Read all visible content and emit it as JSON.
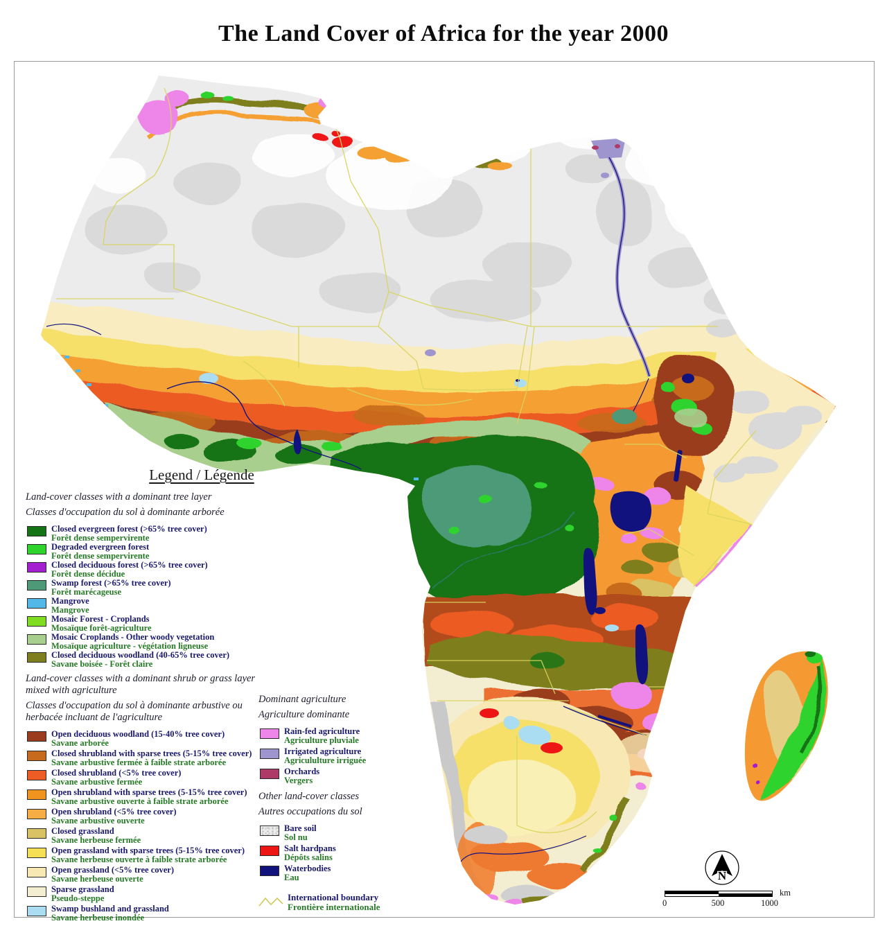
{
  "title": "The Land Cover of Africa for the year 2000",
  "legend": {
    "title": "Legend / Légende",
    "label_color_en": "#18186e",
    "label_color_fr": "#267a26",
    "sections": [
      {
        "id": "tree",
        "header_en": "Land-cover classes with a dominant tree layer",
        "header_fr": "Classes d'occupation du sol à dominante arborée",
        "items": [
          {
            "en": "Closed evergreen forest (>65% tree cover)",
            "fr": "Forêt dense sempervirente",
            "color": "#147314"
          },
          {
            "en": "Degraded evergreen forest",
            "fr": "Forêt dense sempervirente",
            "color": "#2ed32e"
          },
          {
            "en": "Closed deciduous forest (>65% tree cover)",
            "fr": "Forêt dense décidue",
            "color": "#a31fd0"
          },
          {
            "en": "Swamp forest (>65% tree cover)",
            "fr": "Forêt marécageuse",
            "color": "#4e9a78"
          },
          {
            "en": "Mangrove",
            "fr": "Mangrove",
            "color": "#52b8e8"
          },
          {
            "en": "Mosaic Forest - Croplands",
            "fr": "Mosaïque forêt-agriculture",
            "color": "#7fdc20"
          },
          {
            "en": "Mosaic Croplands - Other woody vegetation",
            "fr": "Mosaïque agriculture - végétation ligneuse",
            "color": "#a8cf8e"
          },
          {
            "en": "Closed deciduous woodland (40-65% tree cover)",
            "fr": "Savane boisée - Forêt claire",
            "color": "#7e7e1e"
          }
        ]
      },
      {
        "id": "shrub",
        "header_en": "Land-cover classes with a dominant shrub or grass layer mixed with agriculture",
        "header_fr": "Classes d'occupation du sol à dominante arbustive ou herbacée incluant de l'agriculture",
        "items": [
          {
            "en": "Open deciduous woodland (15-40% tree cover)",
            "fr": "Savane arborée",
            "color": "#9a3c1d"
          },
          {
            "en": "Closed shrubland with sparse trees (5-15% tree cover)",
            "fr": "Savane arbustive fermée à faible strate arborée",
            "color": "#c76a1c"
          },
          {
            "en": "Closed shrubland (<5% tree cover)",
            "fr": "Savane arbustive fermée",
            "color": "#ec5c24"
          },
          {
            "en": "Open shrubland with sparse trees  (5-15% tree cover)",
            "fr": "Savane arbustive ouverte à faible strate arborée",
            "color": "#f1941f"
          },
          {
            "en": "Open shrubland (<5% tree cover)",
            "fr": "Savane arbustive ouverte",
            "color": "#f5ad44"
          },
          {
            "en": "Closed grassland",
            "fr": "Savane herbeuse fermée",
            "color": "#d8c264"
          },
          {
            "en": "Open grassland with sparse trees (5-15% tree cover)",
            "fr": "Savane herbeuse ouverte à faible strate arborée",
            "color": "#f4df55"
          },
          {
            "en": "Open grassland  (<5% tree cover)",
            "fr": "Savane herbeuse ouverte",
            "color": "#f8e9b4"
          },
          {
            "en": "Sparse grassland",
            "fr": "Pseudo-steppe",
            "color": "#f3eed2"
          },
          {
            "en": "Swamp bushland and grassland",
            "fr": "Savane herbeuse inondée",
            "color": "#aadcf2"
          }
        ]
      },
      {
        "id": "agri",
        "header_en": "Dominant agriculture",
        "header_fr": "Agriculture dominante",
        "items": [
          {
            "en": "Rain-fed agriculture",
            "fr": "Agriculture pluviale",
            "color": "#ee85e8"
          },
          {
            "en": "Irrigated agriculture",
            "fr": "Agricululture irriguée",
            "color": "#9e95ce"
          },
          {
            "en": "Orchards",
            "fr": "Vergers",
            "color": "#ad3a67"
          }
        ]
      },
      {
        "id": "other",
        "header_en": "Other land-cover classes",
        "header_fr": "Autres occupations du sol",
        "items": [
          {
            "en": "Bare soil",
            "fr": "Sol nu",
            "color": "#ececec",
            "texture": "mottled"
          },
          {
            "en": "Salt hardpans",
            "fr": "Dépôts salins",
            "color": "#ee1515"
          },
          {
            "en": "Waterbodies",
            "fr": "Eau",
            "color": "#12127e"
          }
        ]
      }
    ],
    "boundary": {
      "en": "International boundary",
      "fr": "Frontière internationale",
      "color": "#d8d45f"
    }
  },
  "map": {
    "north_label": "N",
    "scalebar": {
      "ticks": [
        "0",
        "500",
        "1000"
      ],
      "unit": "km"
    }
  }
}
